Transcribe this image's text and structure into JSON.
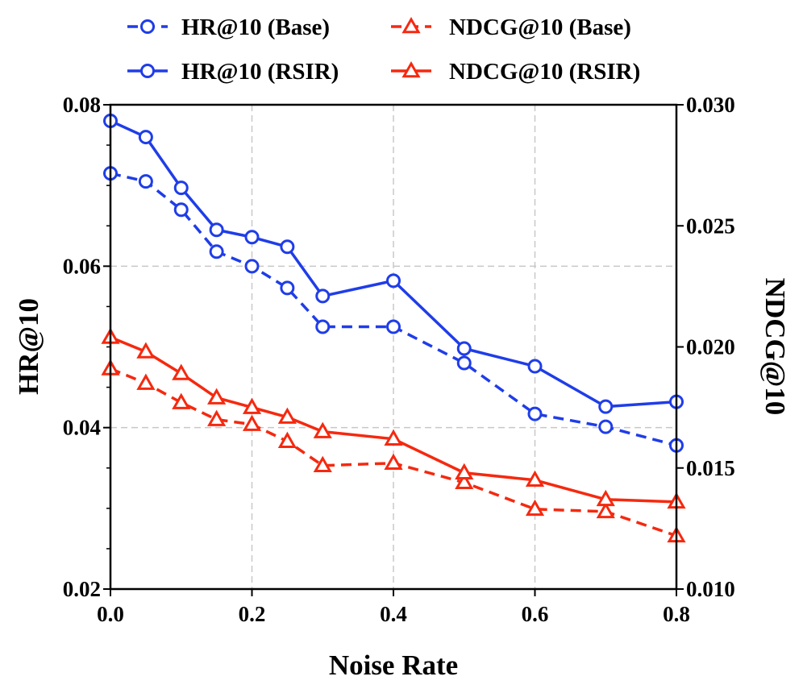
{
  "chart_data": {
    "type": "line",
    "xlabel": "Noise Rate",
    "ylabel_left": "HR@10",
    "ylabel_right": "NDCG@10",
    "xlim": [
      0.0,
      0.8
    ],
    "ylim_left": [
      0.02,
      0.08
    ],
    "ylim_right": [
      0.01,
      0.03
    ],
    "x_ticks": [
      "0.0",
      "0.2",
      "0.4",
      "0.6",
      "0.8"
    ],
    "y_left_ticks": [
      "0.02",
      "0.04",
      "0.06",
      "0.08"
    ],
    "y_right_ticks": [
      "0.010",
      "0.015",
      "0.020",
      "0.025",
      "0.030"
    ],
    "grid": true,
    "legend_position": "top",
    "x": [
      0.0,
      0.05,
      0.1,
      0.15,
      0.2,
      0.25,
      0.3,
      0.4,
      0.5,
      0.6,
      0.7,
      0.8
    ],
    "series": [
      {
        "name": "HR@10 (Base)",
        "axis": "left",
        "style": "dashed",
        "marker": "circle",
        "color": "#1f3de8",
        "values": [
          0.0715,
          0.0705,
          0.067,
          0.0618,
          0.06,
          0.0573,
          0.0525,
          0.0525,
          0.048,
          0.0417,
          0.0401,
          0.0378
        ]
      },
      {
        "name": "HR@10 (RSIR)",
        "axis": "left",
        "style": "solid",
        "marker": "circle",
        "color": "#1f3de8",
        "values": [
          0.078,
          0.076,
          0.0697,
          0.0645,
          0.0636,
          0.0624,
          0.0563,
          0.0582,
          0.0498,
          0.0476,
          0.0426,
          0.0432
        ]
      },
      {
        "name": "NDCG@10 (Base)",
        "axis": "right",
        "style": "dashed",
        "marker": "triangle",
        "color": "#f5290f",
        "values": [
          0.0191,
          0.0185,
          0.0177,
          0.017,
          0.0168,
          0.0161,
          0.0151,
          0.0152,
          0.0144,
          0.0133,
          0.0132,
          0.0122
        ]
      },
      {
        "name": "NDCG@10 (RSIR)",
        "axis": "right",
        "style": "solid",
        "marker": "triangle",
        "color": "#f5290f",
        "values": [
          0.0204,
          0.0198,
          0.0189,
          0.0179,
          0.0175,
          0.0171,
          0.0165,
          0.0162,
          0.0148,
          0.0145,
          0.0137,
          0.0136
        ]
      }
    ]
  }
}
